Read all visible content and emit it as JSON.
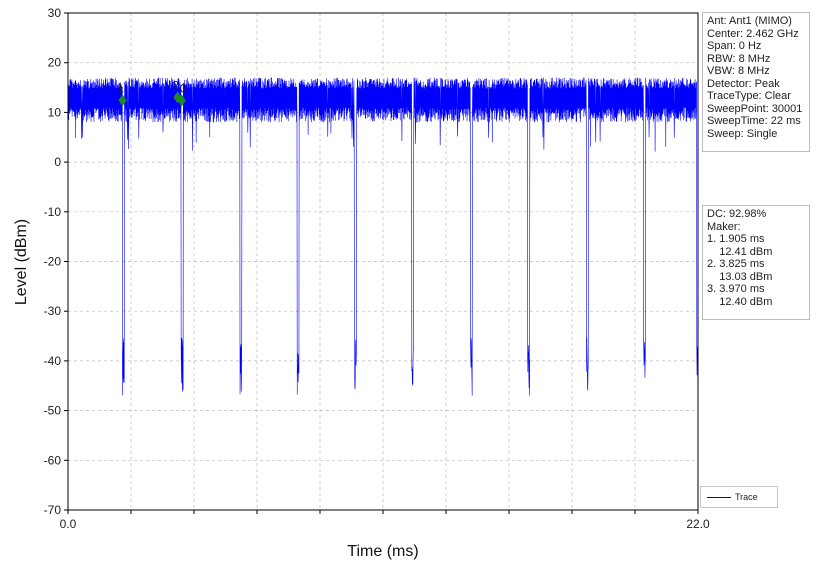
{
  "chart_data": {
    "type": "line",
    "title": "",
    "xlabel": "Time (ms)",
    "ylabel": "Level (dBm)",
    "xlim": [
      0.0,
      22.0
    ],
    "ylim": [
      -70,
      30
    ],
    "x_ticks": [
      0.0,
      22.0
    ],
    "x_tick_labels": [
      "0.0",
      "22.0"
    ],
    "y_ticks": [
      30,
      20,
      10,
      0,
      -10,
      -20,
      -30,
      -40,
      -50,
      -60,
      -70
    ],
    "grid": true,
    "trace_color": "#0000ff",
    "series": [
      {
        "name": "Trace",
        "on_level_range_dBm": [
          8,
          17
        ],
        "off_level_range_dBm": [
          -47,
          -35
        ],
        "gap_start_times_ms": [
          1.9,
          3.95,
          6.0,
          8.0,
          10.0,
          12.0,
          14.05,
          16.05,
          18.1,
          20.1,
          21.95
        ]
      }
    ],
    "markers": [
      {
        "label": "1",
        "x": 1.905,
        "y": 12.41
      },
      {
        "label": "2",
        "x": 3.825,
        "y": 13.03
      },
      {
        "label": "3",
        "x": 3.97,
        "y": 12.4
      }
    ],
    "marker_color": "#1f8c1f",
    "legend_position": "bottom-right"
  },
  "info_top": [
    "Ant: Ant1 (MIMO)",
    "Center: 2.462 GHz",
    "Span: 0 Hz",
    "RBW: 8 MHz",
    "VBW: 8 MHz",
    "Detector: Peak",
    "TraceType: Clear",
    "SweepPoint: 30001",
    "SweepTime: 22 ms",
    "Sweep: Single"
  ],
  "info_bottom": [
    "DC: 92.98%",
    "Maker:",
    "1. 1.905 ms",
    "    12.41 dBm",
    "2. 3.825 ms",
    "    13.03 dBm",
    "3. 3.970 ms",
    "    12.40 dBm"
  ],
  "legend_label": "Trace"
}
